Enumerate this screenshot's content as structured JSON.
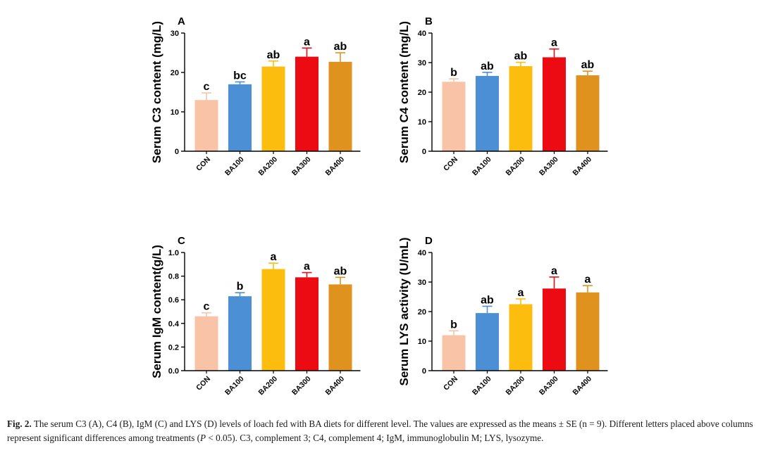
{
  "chart_data": [
    {
      "type": "bar",
      "panel": "A",
      "ylabel": "Serum C3 content (mg/L)",
      "categories": [
        "CON",
        "BA100",
        "BA200",
        "BA300",
        "BA400"
      ],
      "values": [
        13.0,
        17.0,
        21.5,
        24.0,
        22.7
      ],
      "errors": [
        1.8,
        0.6,
        1.4,
        2.2,
        2.3
      ],
      "letters": [
        "c",
        "bc",
        "ab",
        "a",
        "ab"
      ],
      "ylim": [
        0,
        30
      ],
      "yticks": [
        0,
        10,
        20,
        30
      ],
      "ytick_labels": [
        "0",
        "10",
        "20",
        "30"
      ]
    },
    {
      "type": "bar",
      "panel": "B",
      "ylabel": "Serum C4 content (mg/L)",
      "categories": [
        "CON",
        "BA100",
        "BA200",
        "BA300",
        "BA400"
      ],
      "values": [
        23.5,
        25.5,
        28.8,
        31.8,
        25.7
      ],
      "errors": [
        1.0,
        1.2,
        1.3,
        2.8,
        1.4
      ],
      "letters": [
        "b",
        "ab",
        "ab",
        "a",
        "ab"
      ],
      "ylim": [
        0,
        40
      ],
      "yticks": [
        0,
        10,
        20,
        30,
        40
      ],
      "ytick_labels": [
        "0",
        "10",
        "20",
        "30",
        "40"
      ]
    },
    {
      "type": "bar",
      "panel": "C",
      "ylabel": "Serum IgM content(g/L)",
      "categories": [
        "CON",
        "BA100",
        "BA200",
        "BA300",
        "BA400"
      ],
      "values": [
        0.46,
        0.63,
        0.86,
        0.79,
        0.73
      ],
      "errors": [
        0.03,
        0.03,
        0.05,
        0.04,
        0.06
      ],
      "letters": [
        "c",
        "b",
        "a",
        "a",
        "ab"
      ],
      "ylim": [
        0,
        1.0
      ],
      "yticks": [
        0,
        0.2,
        0.4,
        0.6,
        0.8,
        1.0
      ],
      "ytick_labels": [
        "0.0",
        "0.2",
        "0.4",
        "0.6",
        "0.8",
        "1.0"
      ]
    },
    {
      "type": "bar",
      "panel": "D",
      "ylabel": "Serum LYS activity (U/mL)",
      "categories": [
        "CON",
        "BA100",
        "BA200",
        "BA300",
        "BA400"
      ],
      "values": [
        12.0,
        19.5,
        22.5,
        27.8,
        26.5
      ],
      "errors": [
        1.5,
        2.3,
        1.8,
        3.9,
        2.3
      ],
      "letters": [
        "b",
        "ab",
        "a",
        "a",
        "a"
      ],
      "ylim": [
        0,
        40
      ],
      "yticks": [
        0,
        10,
        20,
        30,
        40
      ],
      "ytick_labels": [
        "0",
        "10",
        "20",
        "30",
        "40"
      ]
    }
  ],
  "colors": [
    "#f8c3a6",
    "#4c8fd4",
    "#fdbd0f",
    "#ec0b12",
    "#e0921f"
  ],
  "caption": {
    "label": "Fig. 2.",
    "text_1": " The serum C3 (A), C4 (B), IgM (C) and LYS (D) levels of loach fed with BA diets for different level. The values are expressed as the means ± SE (n = 9). Different letters placed above columns represent significant differences among treatments (",
    "p_value": "P",
    "text_2": " < 0.05). C3, complement 3; C4, complement 4; IgM, immunoglobulin M; LYS, lysozyme."
  }
}
